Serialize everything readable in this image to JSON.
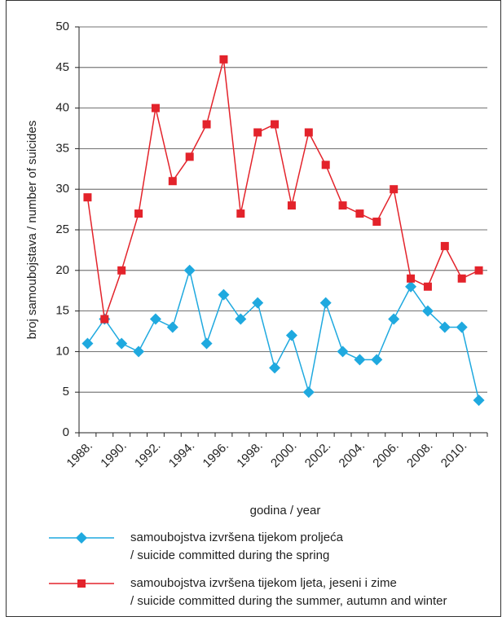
{
  "chart_data": {
    "type": "line",
    "y_label": "broj samoubojstava / number of suicides",
    "x_label": "godina / year",
    "categories": [
      "1988.",
      null,
      "1990.",
      null,
      "1992.",
      null,
      "1994.",
      null,
      "1996.",
      null,
      "1998.",
      null,
      "2000.",
      null,
      "2002.",
      null,
      "2004.",
      null,
      "2006.",
      null,
      "2008.",
      null,
      "2010.",
      null
    ],
    "series": [
      {
        "name": [
          "samoubojstva izvršena tijekom proljeća",
          "/ suicide committed during the spring"
        ],
        "color": "#1fa9df",
        "marker": "diamond",
        "values": [
          11,
          14,
          11,
          10,
          14,
          13,
          20,
          11,
          17,
          14,
          16,
          8,
          12,
          5,
          16,
          10,
          9,
          9,
          14,
          18,
          15,
          13,
          13,
          4
        ]
      },
      {
        "name": [
          "samoubojstva izvršena tijekom ljeta, jeseni i zime",
          "/ suicide committed during the summer, autumn and winter"
        ],
        "color": "#e3232b",
        "marker": "square",
        "values": [
          29,
          14,
          20,
          27,
          40,
          31,
          34,
          38,
          46,
          27,
          37,
          38,
          28,
          37,
          33,
          28,
          27,
          26,
          30,
          19,
          18,
          23,
          19,
          20
        ]
      }
    ],
    "ylim": [
      0,
      50
    ],
    "yticks": [
      0,
      5,
      10,
      15,
      20,
      25,
      30,
      35,
      40,
      45,
      50
    ],
    "grid": true
  }
}
